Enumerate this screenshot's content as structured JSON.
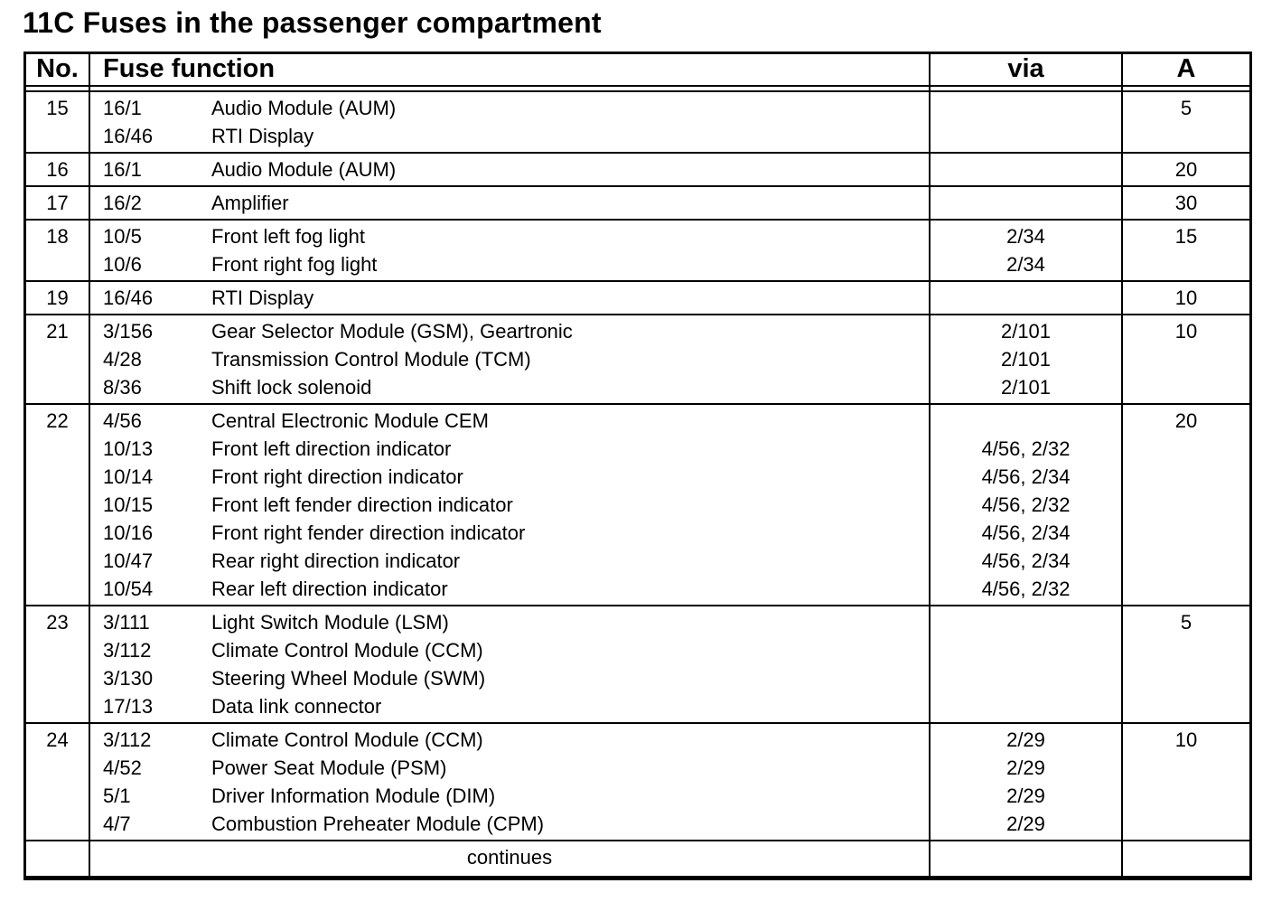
{
  "page_title": "11C Fuses in the passenger compartment",
  "colors": {
    "background": "#ffffff",
    "text": "#000000",
    "border": "#000000"
  },
  "table": {
    "headers": {
      "no": "No.",
      "function": "Fuse function",
      "via": "via",
      "amp": "A"
    },
    "rows": [
      {
        "no": "15",
        "amp": "5",
        "lines": [
          {
            "code": "16/1",
            "desc": "Audio Module (AUM)",
            "via": ""
          },
          {
            "code": "16/46",
            "desc": "RTI Display",
            "via": ""
          }
        ]
      },
      {
        "no": "16",
        "amp": "20",
        "lines": [
          {
            "code": "16/1",
            "desc": "Audio Module (AUM)",
            "via": ""
          }
        ]
      },
      {
        "no": "17",
        "amp": "30",
        "lines": [
          {
            "code": "16/2",
            "desc": "Amplifier",
            "via": ""
          }
        ]
      },
      {
        "no": "18",
        "amp": "15",
        "lines": [
          {
            "code": "10/5",
            "desc": "Front left fog light",
            "via": "2/34"
          },
          {
            "code": "10/6",
            "desc": "Front right fog light",
            "via": "2/34"
          }
        ]
      },
      {
        "no": "19",
        "amp": "10",
        "lines": [
          {
            "code": "16/46",
            "desc": "RTI Display",
            "via": ""
          }
        ]
      },
      {
        "no": "21",
        "amp": "10",
        "lines": [
          {
            "code": "3/156",
            "desc": "Gear Selector Module (GSM), Geartronic",
            "via": "2/101"
          },
          {
            "code": "4/28",
            "desc": "Transmission Control Module (TCM)",
            "via": "2/101"
          },
          {
            "code": "8/36",
            "desc": "Shift lock solenoid",
            "via": "2/101"
          }
        ]
      },
      {
        "no": "22",
        "amp": "20",
        "lines": [
          {
            "code": "4/56",
            "desc": "Central Electronic Module CEM",
            "via": ""
          },
          {
            "code": "10/13",
            "desc": "Front left direction indicator",
            "via": "4/56, 2/32"
          },
          {
            "code": "10/14",
            "desc": "Front right direction indicator",
            "via": "4/56, 2/34"
          },
          {
            "code": "10/15",
            "desc": "Front left fender direction indicator",
            "via": "4/56, 2/32"
          },
          {
            "code": "10/16",
            "desc": "Front right fender direction indicator",
            "via": "4/56, 2/34"
          },
          {
            "code": "10/47",
            "desc": "Rear right direction indicator",
            "via": "4/56, 2/34"
          },
          {
            "code": "10/54",
            "desc": "Rear left direction indicator",
            "via": "4/56, 2/32"
          }
        ]
      },
      {
        "no": "23",
        "amp": "5",
        "lines": [
          {
            "code": "3/111",
            "desc": "Light Switch Module (LSM)",
            "via": ""
          },
          {
            "code": "3/112",
            "desc": "Climate Control Module (CCM)",
            "via": ""
          },
          {
            "code": "3/130",
            "desc": "Steering Wheel Module (SWM)",
            "via": ""
          },
          {
            "code": "17/13",
            "desc": "Data link connector",
            "via": ""
          }
        ]
      },
      {
        "no": "24",
        "amp": "10",
        "lines": [
          {
            "code": "3/112",
            "desc": "Climate Control Module (CCM)",
            "via": "2/29"
          },
          {
            "code": "4/52",
            "desc": "Power Seat Module (PSM)",
            "via": "2/29"
          },
          {
            "code": "5/1",
            "desc": "Driver Information Module (DIM)",
            "via": "2/29"
          },
          {
            "code": "4/7",
            "desc": "Combustion Preheater Module (CPM)",
            "via": "2/29"
          }
        ]
      }
    ],
    "footer": "continues"
  }
}
